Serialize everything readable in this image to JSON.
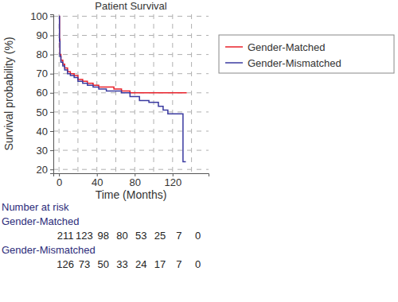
{
  "chart_data": {
    "type": "step",
    "title": "Patient Survival",
    "x_label": "Time (Months)",
    "y_label": "Survival probability (%)",
    "xlim": [
      -6,
      158
    ],
    "ylim": [
      18,
      101
    ],
    "xticks": [
      0,
      40,
      80,
      120
    ],
    "yticks": [
      20,
      30,
      40,
      50,
      60,
      70,
      80,
      90,
      100
    ],
    "grid": true,
    "legend": "right",
    "series": [
      {
        "name": "Gender-Matched",
        "color": "#e8202a",
        "x": [
          0,
          0.5,
          1,
          2,
          4,
          6,
          9,
          12,
          16,
          20,
          25,
          30,
          36,
          42,
          50,
          58,
          66,
          75,
          85,
          135
        ],
        "values": [
          100,
          88,
          80,
          77,
          75,
          73,
          71,
          70,
          69,
          67,
          66,
          65,
          64,
          63,
          63,
          62,
          61,
          60,
          60,
          60
        ]
      },
      {
        "name": "Gender-Mismatched",
        "color": "#3a3aa0",
        "x": [
          0,
          0.5,
          1,
          2,
          4,
          6,
          9,
          12,
          16,
          20,
          25,
          30,
          36,
          42,
          50,
          58,
          66,
          75,
          85,
          95,
          105,
          110,
          115,
          131,
          134
        ],
        "values": [
          100,
          87,
          79,
          76,
          74,
          72,
          70,
          69,
          68,
          66,
          65,
          64,
          63,
          62,
          61,
          61,
          60,
          58,
          56,
          55,
          53,
          51,
          49,
          24,
          24
        ]
      }
    ],
    "number_at_risk": {
      "title": "Number at risk",
      "times": [
        0,
        20,
        40,
        60,
        80,
        100,
        120,
        140
      ],
      "series": [
        {
          "name": "Gender-Matched",
          "values": [
            211,
            123,
            98,
            80,
            53,
            25,
            7,
            0
          ]
        },
        {
          "name": "Gender-Mismatched",
          "values": [
            126,
            73,
            50,
            33,
            24,
            17,
            7,
            0
          ]
        }
      ]
    }
  }
}
